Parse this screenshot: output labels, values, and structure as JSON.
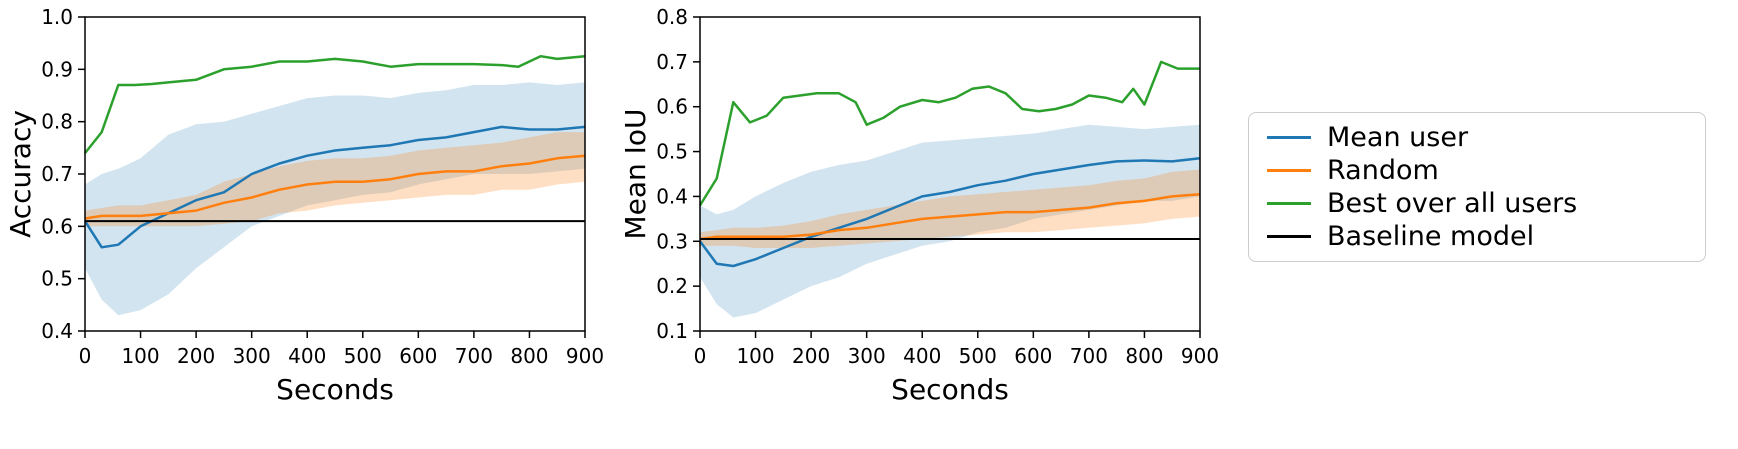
{
  "figure": {
    "background": "#ffffff"
  },
  "legend": {
    "items": [
      {
        "label": "Mean user",
        "color": "#1f77b4"
      },
      {
        "label": "Random",
        "color": "#ff7f0e"
      },
      {
        "label": "Best over all users",
        "color": "#2ca02c"
      },
      {
        "label": "Baseline model",
        "color": "#000000"
      }
    ]
  },
  "chart_data": [
    {
      "type": "line",
      "title": "",
      "xlabel": "Seconds",
      "ylabel": "Accuracy",
      "xlim": [
        0,
        900
      ],
      "ylim": [
        0.4,
        1.0
      ],
      "grid": false,
      "legend_position": "right-outside",
      "xticks": [
        0,
        100,
        200,
        300,
        400,
        500,
        600,
        700,
        800,
        900
      ],
      "xtick_labels": [
        "0",
        "100",
        "200",
        "300",
        "400",
        "500",
        "600",
        "700",
        "800",
        "900"
      ],
      "yticks": [
        0.4,
        0.5,
        0.6,
        0.7,
        0.8,
        0.9,
        1.0
      ],
      "ytick_labels": [
        "0.4",
        "0.5",
        "0.6",
        "0.7",
        "0.8",
        "0.9",
        "1.0"
      ],
      "series": [
        {
          "name": "Mean user",
          "slug": "mean-user",
          "color": "#1f77b4",
          "band_opacity": 0.2,
          "x": [
            0,
            30,
            60,
            100,
            150,
            200,
            250,
            300,
            350,
            400,
            450,
            500,
            550,
            600,
            650,
            700,
            750,
            800,
            850,
            900
          ],
          "y": [
            0.61,
            0.56,
            0.565,
            0.6,
            0.625,
            0.65,
            0.665,
            0.7,
            0.72,
            0.735,
            0.745,
            0.75,
            0.755,
            0.765,
            0.77,
            0.78,
            0.79,
            0.785,
            0.785,
            0.79
          ],
          "band_lower": [
            0.52,
            0.46,
            0.43,
            0.44,
            0.47,
            0.52,
            0.56,
            0.6,
            0.62,
            0.64,
            0.65,
            0.66,
            0.665,
            0.68,
            0.69,
            0.7,
            0.7,
            0.7,
            0.705,
            0.71
          ],
          "band_upper": [
            0.68,
            0.7,
            0.71,
            0.73,
            0.775,
            0.795,
            0.8,
            0.815,
            0.83,
            0.845,
            0.85,
            0.85,
            0.845,
            0.855,
            0.86,
            0.87,
            0.87,
            0.875,
            0.87,
            0.875
          ]
        },
        {
          "name": "Random",
          "slug": "random",
          "color": "#ff7f0e",
          "band_opacity": 0.25,
          "x": [
            0,
            30,
            60,
            100,
            150,
            200,
            250,
            300,
            350,
            400,
            450,
            500,
            550,
            600,
            650,
            700,
            750,
            800,
            850,
            900
          ],
          "y": [
            0.615,
            0.62,
            0.62,
            0.62,
            0.625,
            0.63,
            0.645,
            0.655,
            0.67,
            0.68,
            0.685,
            0.685,
            0.69,
            0.7,
            0.705,
            0.705,
            0.715,
            0.72,
            0.73,
            0.735
          ],
          "band_lower": [
            0.6,
            0.6,
            0.6,
            0.6,
            0.6,
            0.6,
            0.605,
            0.61,
            0.625,
            0.63,
            0.64,
            0.645,
            0.65,
            0.655,
            0.66,
            0.66,
            0.67,
            0.67,
            0.68,
            0.685
          ],
          "band_upper": [
            0.63,
            0.635,
            0.64,
            0.64,
            0.65,
            0.66,
            0.685,
            0.7,
            0.715,
            0.725,
            0.73,
            0.73,
            0.735,
            0.745,
            0.75,
            0.755,
            0.76,
            0.77,
            0.78,
            0.78
          ]
        },
        {
          "name": "Best over all users",
          "slug": "best-over-all-users",
          "color": "#2ca02c",
          "x": [
            0,
            30,
            60,
            90,
            120,
            150,
            200,
            250,
            300,
            350,
            400,
            450,
            500,
            550,
            600,
            650,
            700,
            750,
            780,
            820,
            850,
            900
          ],
          "y": [
            0.74,
            0.78,
            0.87,
            0.87,
            0.872,
            0.875,
            0.88,
            0.9,
            0.905,
            0.915,
            0.915,
            0.92,
            0.915,
            0.905,
            0.91,
            0.91,
            0.91,
            0.908,
            0.905,
            0.925,
            0.92,
            0.925
          ]
        },
        {
          "name": "Baseline model",
          "slug": "baseline-model",
          "color": "#000000",
          "constant_y": 0.61
        }
      ]
    },
    {
      "type": "line",
      "title": "",
      "xlabel": "Seconds",
      "ylabel": "Mean IoU",
      "xlim": [
        0,
        900
      ],
      "ylim": [
        0.1,
        0.8
      ],
      "grid": false,
      "legend_position": "right-outside",
      "xticks": [
        0,
        100,
        200,
        300,
        400,
        500,
        600,
        700,
        800,
        900
      ],
      "xtick_labels": [
        "0",
        "100",
        "200",
        "300",
        "400",
        "500",
        "600",
        "700",
        "800",
        "900"
      ],
      "yticks": [
        0.1,
        0.2,
        0.3,
        0.4,
        0.5,
        0.6,
        0.7,
        0.8
      ],
      "ytick_labels": [
        "0.1",
        "0.2",
        "0.3",
        "0.4",
        "0.5",
        "0.6",
        "0.7",
        "0.8"
      ],
      "series": [
        {
          "name": "Mean user",
          "slug": "mean-user",
          "color": "#1f77b4",
          "band_opacity": 0.2,
          "x": [
            0,
            30,
            60,
            100,
            150,
            200,
            250,
            300,
            350,
            400,
            450,
            500,
            550,
            600,
            650,
            700,
            750,
            800,
            850,
            900
          ],
          "y": [
            0.3,
            0.25,
            0.245,
            0.26,
            0.285,
            0.31,
            0.33,
            0.35,
            0.375,
            0.4,
            0.41,
            0.425,
            0.435,
            0.45,
            0.46,
            0.47,
            0.478,
            0.48,
            0.478,
            0.485
          ],
          "band_lower": [
            0.22,
            0.16,
            0.13,
            0.14,
            0.17,
            0.2,
            0.22,
            0.25,
            0.27,
            0.29,
            0.3,
            0.32,
            0.33,
            0.35,
            0.36,
            0.37,
            0.38,
            0.39,
            0.39,
            0.4
          ],
          "band_upper": [
            0.38,
            0.36,
            0.37,
            0.4,
            0.43,
            0.455,
            0.47,
            0.48,
            0.5,
            0.52,
            0.525,
            0.53,
            0.535,
            0.54,
            0.55,
            0.56,
            0.555,
            0.55,
            0.555,
            0.56
          ]
        },
        {
          "name": "Random",
          "slug": "random",
          "color": "#ff7f0e",
          "band_opacity": 0.25,
          "x": [
            0,
            30,
            60,
            100,
            150,
            200,
            250,
            300,
            350,
            400,
            450,
            500,
            550,
            600,
            650,
            700,
            750,
            800,
            850,
            900
          ],
          "y": [
            0.305,
            0.31,
            0.31,
            0.31,
            0.31,
            0.315,
            0.325,
            0.33,
            0.34,
            0.35,
            0.355,
            0.36,
            0.365,
            0.365,
            0.37,
            0.375,
            0.385,
            0.39,
            0.4,
            0.405
          ],
          "band_lower": [
            0.29,
            0.29,
            0.29,
            0.285,
            0.285,
            0.285,
            0.29,
            0.295,
            0.3,
            0.305,
            0.31,
            0.315,
            0.32,
            0.32,
            0.325,
            0.33,
            0.335,
            0.34,
            0.35,
            0.355
          ],
          "band_upper": [
            0.32,
            0.325,
            0.33,
            0.33,
            0.335,
            0.345,
            0.36,
            0.37,
            0.38,
            0.39,
            0.4,
            0.405,
            0.41,
            0.415,
            0.42,
            0.425,
            0.435,
            0.44,
            0.455,
            0.46
          ]
        },
        {
          "name": "Best over all users",
          "slug": "best-over-all-users",
          "color": "#2ca02c",
          "x": [
            0,
            30,
            60,
            90,
            120,
            150,
            180,
            210,
            250,
            280,
            300,
            330,
            360,
            400,
            430,
            460,
            490,
            520,
            550,
            580,
            610,
            640,
            670,
            700,
            730,
            760,
            780,
            800,
            830,
            860,
            900
          ],
          "y": [
            0.38,
            0.44,
            0.61,
            0.565,
            0.58,
            0.62,
            0.625,
            0.63,
            0.63,
            0.61,
            0.56,
            0.575,
            0.6,
            0.615,
            0.61,
            0.62,
            0.64,
            0.645,
            0.63,
            0.595,
            0.59,
            0.595,
            0.605,
            0.625,
            0.62,
            0.61,
            0.64,
            0.605,
            0.7,
            0.685,
            0.685
          ]
        },
        {
          "name": "Baseline model",
          "slug": "baseline-model",
          "color": "#000000",
          "constant_y": 0.305
        }
      ]
    }
  ]
}
